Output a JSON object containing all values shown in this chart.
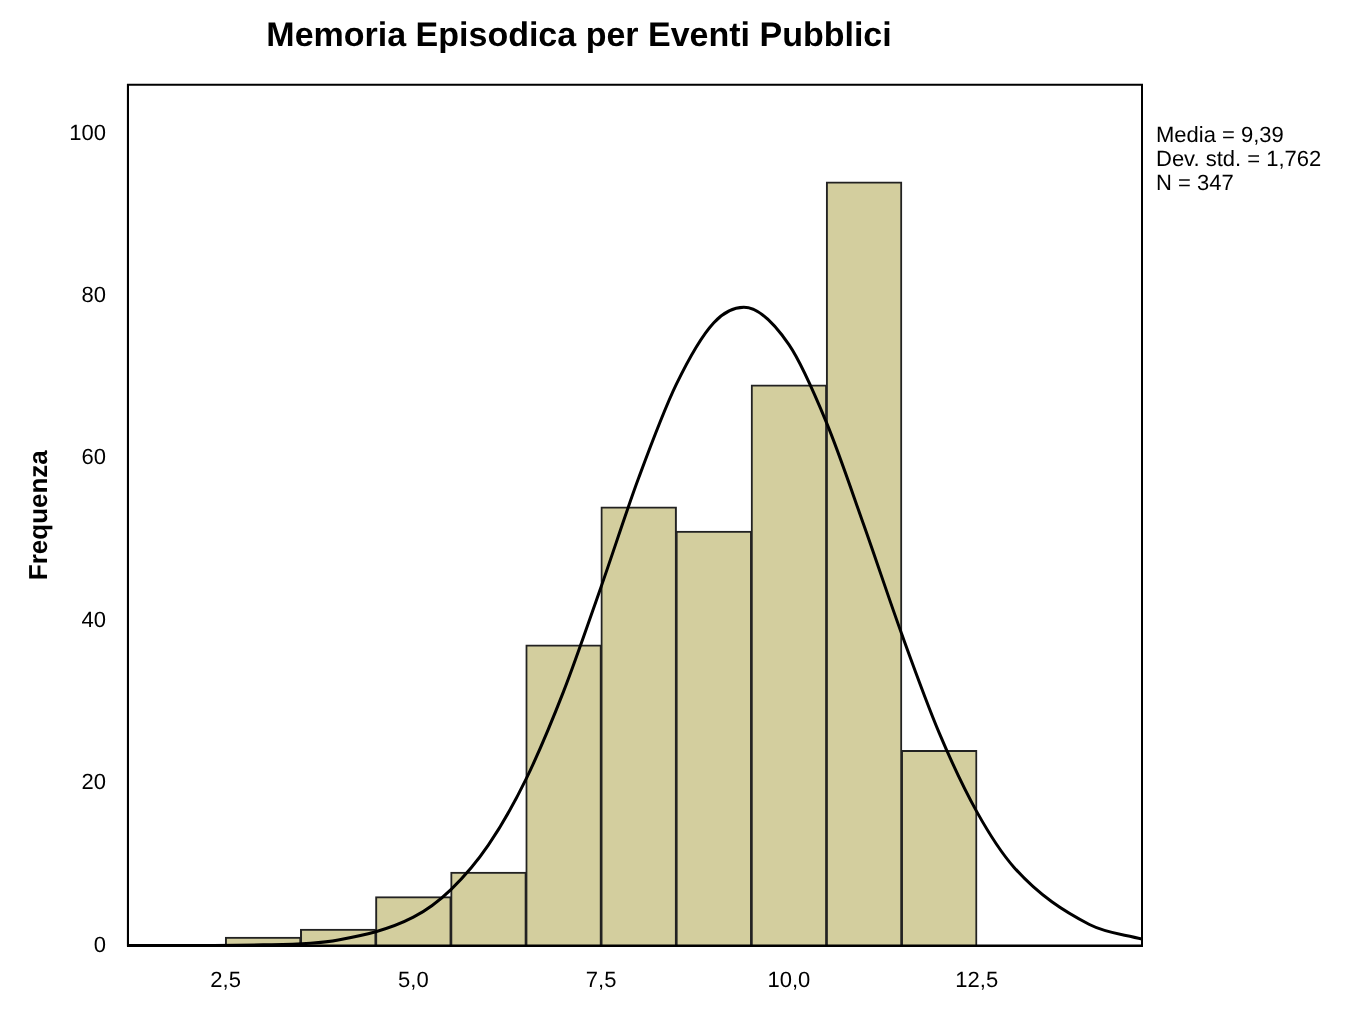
{
  "chart_data": {
    "type": "histogram",
    "title": "Memoria Episodica per Eventi Pubblici",
    "ylabel": "Frequenza",
    "bins": [
      2.5,
      3.5,
      4.5,
      5.5,
      6.5,
      7.5,
      8.5,
      9.5,
      10.5,
      11.5,
      12.5
    ],
    "values": [
      1,
      2,
      6,
      9,
      37,
      54,
      51,
      69,
      94,
      24
    ],
    "color": "#d3ce9e",
    "series": [
      {
        "type": "line",
        "color": "#000000",
        "x": [
          1.2,
          3,
          4,
          5,
          5.5,
          6,
          6.5,
          7,
          7.5,
          8,
          8.5,
          9,
          9.4,
          10,
          10.5,
          11,
          11.5,
          12,
          12.5,
          13,
          14,
          14.7
        ],
        "values": [
          0,
          0.1,
          0.7,
          3.5,
          6.9,
          12.4,
          20.5,
          31.3,
          44.2,
          57.6,
          69.1,
          76.7,
          78.6,
          74,
          64.4,
          51.7,
          38.4,
          26.2,
          16.5,
          9.6,
          2.6,
          0.8
        ]
      }
    ],
    "xlim": [
      1.2,
      14.7
    ],
    "xticks": [
      {
        "value": 2.5,
        "label": "2,5"
      },
      {
        "value": 5,
        "label": "5,0"
      },
      {
        "value": 7.5,
        "label": "7,5"
      },
      {
        "value": 10,
        "label": "10,0"
      },
      {
        "value": 12.5,
        "label": "12,5"
      }
    ],
    "ylim": [
      0,
      106
    ],
    "yticks": [
      0,
      20,
      40,
      60,
      80,
      100
    ],
    "grid": false,
    "legend": false,
    "marker": "none",
    "line_style": "solid",
    "annotations": [
      "Media = 9,39",
      "Dev. std. = 1,762",
      "N = 347"
    ]
  }
}
